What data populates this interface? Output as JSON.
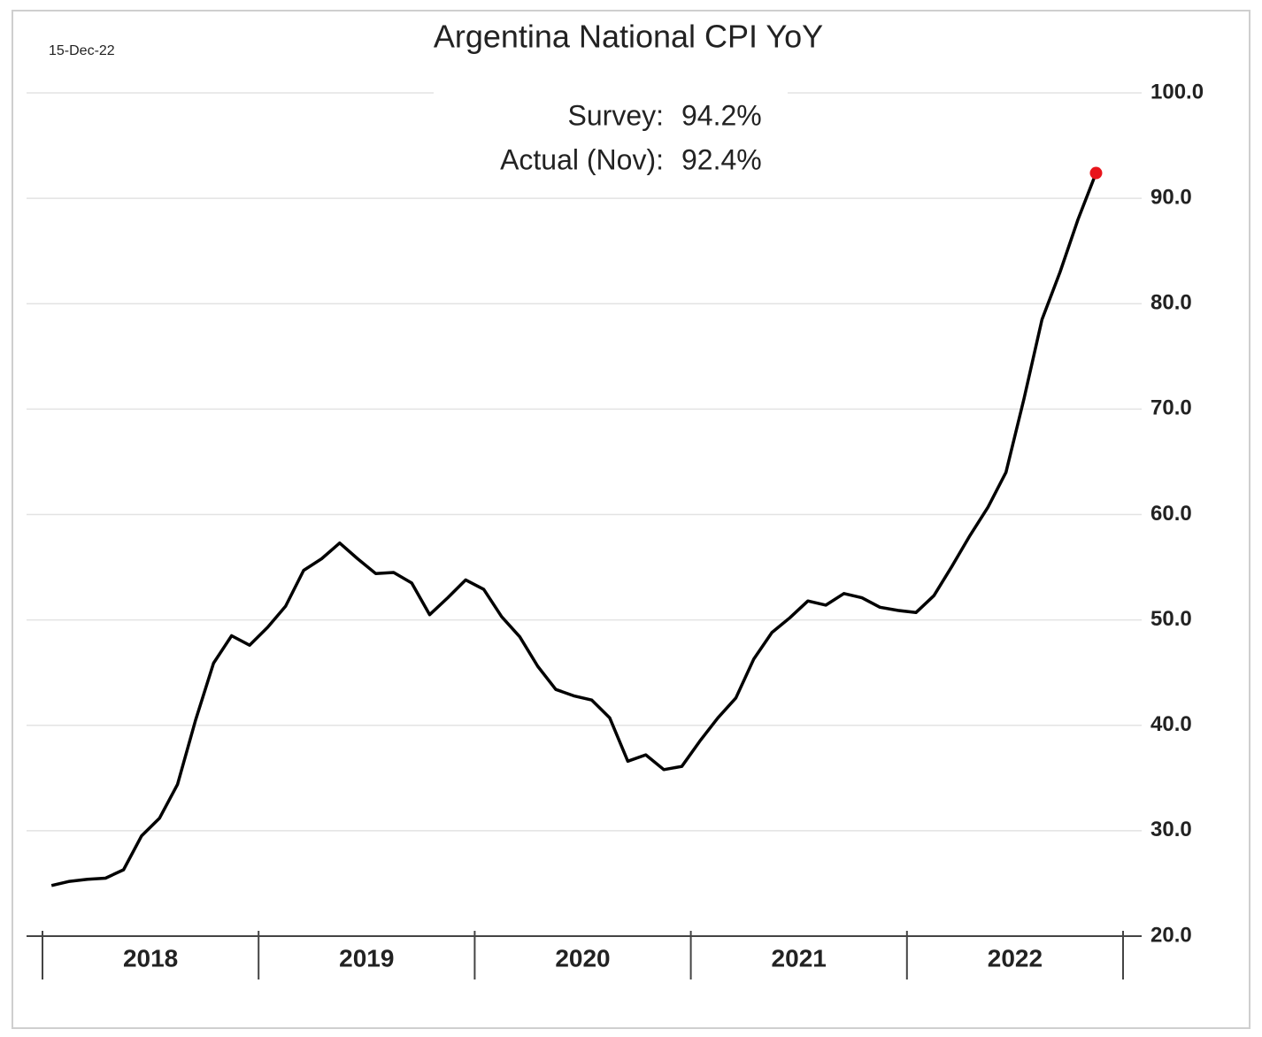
{
  "chart_data": {
    "type": "line",
    "title": "Argentina National CPI YoY",
    "date_note": "15-Dec-22",
    "annotations": [
      {
        "label": "Survey:",
        "value": "94.2%"
      },
      {
        "label": "Actual (Nov):",
        "value": "92.4%"
      }
    ],
    "categories": [
      null,
      null,
      null,
      null,
      null,
      "2018",
      null,
      null,
      null,
      null,
      null,
      null,
      null,
      null,
      null,
      null,
      null,
      "2019",
      null,
      null,
      null,
      null,
      null,
      null,
      null,
      null,
      null,
      null,
      null,
      "2020",
      null,
      null,
      null,
      null,
      null,
      null,
      null,
      null,
      null,
      null,
      null,
      "2021",
      null,
      null,
      null,
      null,
      null,
      null,
      null,
      null,
      null,
      null,
      null,
      "2022",
      null,
      null,
      null,
      null,
      null
    ],
    "series": [
      {
        "color": "#000000",
        "last_point_color": "#e8141b",
        "values": [
          24.8,
          25.2,
          25.4,
          25.5,
          26.3,
          29.5,
          31.2,
          34.4,
          40.5,
          45.9,
          48.5,
          47.6,
          49.3,
          51.3,
          54.7,
          55.8,
          57.3,
          55.8,
          54.4,
          54.5,
          53.5,
          50.5,
          52.1,
          53.8,
          52.9,
          50.3,
          48.4,
          45.6,
          43.4,
          42.8,
          42.4,
          40.7,
          36.6,
          37.2,
          35.8,
          36.1,
          38.5,
          40.7,
          42.6,
          46.3,
          48.8,
          50.2,
          51.8,
          51.4,
          52.5,
          52.1,
          51.2,
          50.9,
          50.7,
          52.3,
          55.1,
          58.0,
          60.7,
          64.0,
          71.0,
          78.5,
          83.0,
          88.0,
          92.4
        ]
      }
    ],
    "ylim": [
      20,
      100
    ],
    "yticks": [
      {
        "value": 20,
        "label": "20.0"
      },
      {
        "value": 30,
        "label": "30.0"
      },
      {
        "value": 40,
        "label": "40.0"
      },
      {
        "value": 50,
        "label": "50.0"
      },
      {
        "value": 60,
        "label": "60.0"
      },
      {
        "value": 70,
        "label": "70.0"
      },
      {
        "value": 80,
        "label": "80.0"
      },
      {
        "value": 90,
        "label": "90.0"
      },
      {
        "value": 100,
        "label": "100.0"
      }
    ],
    "grid": true
  }
}
